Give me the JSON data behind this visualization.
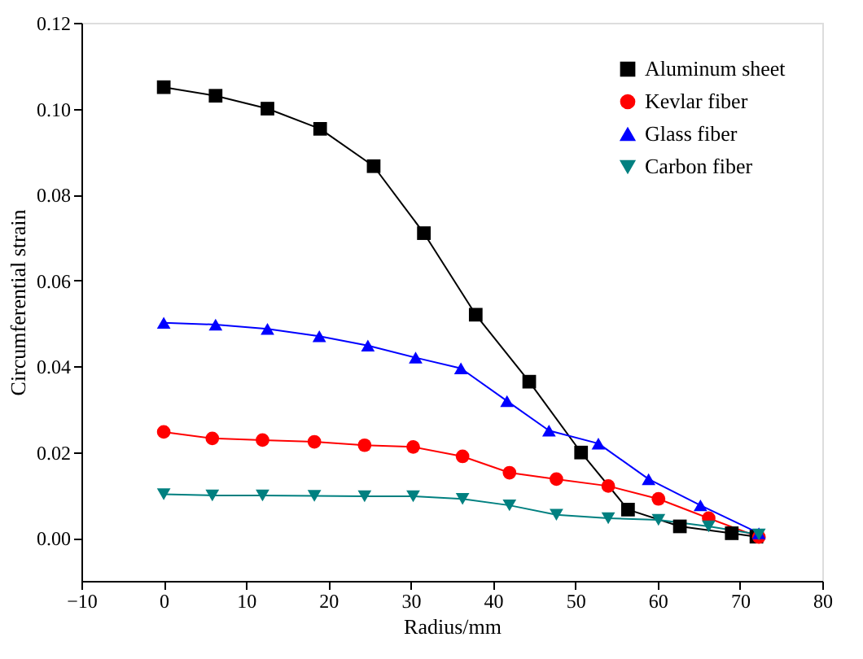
{
  "chart_data": {
    "type": "line",
    "xlabel": "Radius/mm",
    "ylabel": "Circumferential strain",
    "xlim": [
      -10,
      80
    ],
    "xticks": [
      -10,
      0,
      10,
      20,
      30,
      40,
      50,
      60,
      70,
      80
    ],
    "ylim": [
      -0.01,
      0.12
    ],
    "yticks": [
      {
        "value": 0,
        "label": "0.00"
      },
      {
        "value": 0.02,
        "label": "0.02"
      },
      {
        "value": 0.04,
        "label": "0.04"
      },
      {
        "value": 0.06,
        "label": "0.06"
      },
      {
        "value": 0.08,
        "label": "0.08"
      },
      {
        "value": 0.1,
        "label": "0.10"
      },
      {
        "value": 0.12,
        "label": "0.12"
      }
    ],
    "grid": false,
    "legend": "top right",
    "line_style": "solid",
    "series": [
      {
        "name": "Aluminum sheet",
        "color": "#000000",
        "marker": "square",
        "x": [
          0,
          6.3,
          12.6,
          19,
          25.5,
          31.6,
          37.9,
          44.4,
          50.7,
          56.4,
          62.7,
          69,
          72
        ],
        "values": [
          0.105,
          0.103,
          0.1,
          0.0953,
          0.0866,
          0.071,
          0.052,
          0.0364,
          0.0199,
          0.0066,
          0.0027,
          0.0011,
          0.0003
        ]
      },
      {
        "name": "Kevlar fiber",
        "color": "#ff0000",
        "marker": "circle",
        "x": [
          0,
          5.9,
          12,
          18.3,
          24.4,
          30.3,
          36.3,
          42,
          47.7,
          54,
          60.1,
          66.2,
          72.3
        ],
        "values": [
          0.0247,
          0.0232,
          0.0228,
          0.0224,
          0.0216,
          0.0212,
          0.019,
          0.0152,
          0.0137,
          0.0121,
          0.0091,
          0.0046,
          0.0002
        ]
      },
      {
        "name": "Glass fiber",
        "color": "#0000ff",
        "marker": "triangle",
        "x": [
          0,
          6.3,
          12.6,
          18.9,
          24.8,
          30.6,
          36.1,
          41.7,
          46.8,
          52.8,
          58.9,
          65.2,
          72.3
        ],
        "values": [
          0.0501,
          0.0497,
          0.0487,
          0.047,
          0.0448,
          0.042,
          0.0395,
          0.0319,
          0.025,
          0.022,
          0.0137,
          0.0076,
          0.0011
        ]
      },
      {
        "name": "Carbon fiber",
        "color": "#008080",
        "marker": "triangle-down",
        "x": [
          0,
          5.9,
          12,
          18.3,
          24.4,
          30.3,
          36.3,
          42,
          47.7,
          54,
          60.1,
          66.2,
          72.3
        ],
        "values": [
          0.0102,
          0.0099,
          0.0099,
          0.0098,
          0.0097,
          0.0097,
          0.0091,
          0.0076,
          0.0054,
          0.0046,
          0.0042,
          0.0027,
          0.0008
        ]
      }
    ]
  }
}
